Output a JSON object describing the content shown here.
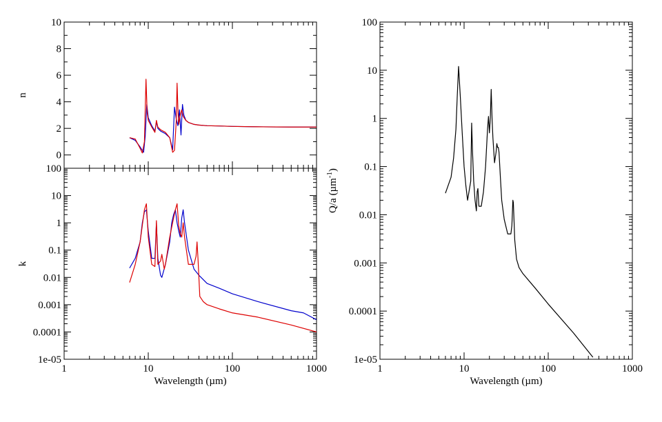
{
  "chart_data": [
    {
      "id": "n",
      "type": "line",
      "ylabel": "n",
      "xscale": "log",
      "yscale": "linear",
      "xlim": [
        1,
        1000
      ],
      "ylim": [
        -1,
        10
      ],
      "y_ticks": [
        "0",
        "2",
        "4",
        "6",
        "8",
        "10"
      ],
      "grid": false,
      "series": [
        {
          "color": "#0000cc",
          "x": [
            6,
            7,
            8,
            8.8,
            9.2,
            9.6,
            10,
            11,
            12,
            12.5,
            13,
            14,
            16,
            18,
            19.5,
            20.5,
            21.5,
            22.5,
            23.5,
            24.5,
            25.5,
            26.5,
            28,
            30,
            35,
            40,
            50,
            70,
            100,
            200,
            500,
            1000
          ],
          "y": [
            1.3,
            1.1,
            0.6,
            0.2,
            1.4,
            3.8,
            2.8,
            2.2,
            1.8,
            2.5,
            2.0,
            1.8,
            1.6,
            1.3,
            0.4,
            3.6,
            2.7,
            2.2,
            3.4,
            1.5,
            3.8,
            3.0,
            2.6,
            2.45,
            2.3,
            2.25,
            2.2,
            2.18,
            2.15,
            2.12,
            2.1,
            2.1
          ]
        },
        {
          "color": "#dd0000",
          "x": [
            6,
            7,
            8,
            8.5,
            9.0,
            9.4,
            9.7,
            10,
            11,
            12,
            12.5,
            13,
            14,
            16,
            18,
            19.5,
            20.5,
            21.5,
            22,
            22.5,
            23,
            24,
            25,
            26,
            28,
            30,
            35,
            40,
            50,
            70,
            100,
            200,
            500,
            1000
          ],
          "y": [
            1.3,
            1.2,
            0.5,
            0.15,
            1.0,
            5.7,
            3.2,
            2.6,
            2.1,
            1.7,
            2.6,
            2.1,
            1.9,
            1.7,
            1.3,
            0.2,
            0.35,
            2.5,
            5.4,
            3.5,
            2.3,
            3.0,
            3.4,
            2.9,
            2.6,
            2.45,
            2.3,
            2.25,
            2.2,
            2.18,
            2.15,
            2.12,
            2.1,
            2.1
          ]
        }
      ]
    },
    {
      "id": "k",
      "type": "line",
      "xlabel": "Wavelength (µm)",
      "ylabel": "k",
      "xscale": "log",
      "yscale": "log",
      "xlim": [
        1,
        1000
      ],
      "ylim": [
        1e-05,
        100
      ],
      "x_ticks": [
        "1",
        "10",
        "100",
        "1000"
      ],
      "y_ticks": [
        "1e-05",
        "0.0001",
        "0.001",
        "0.01",
        "0.1",
        "1",
        "10",
        "100"
      ],
      "grid": false,
      "series": [
        {
          "color": "#0000cc",
          "x": [
            6,
            7,
            8,
            8.5,
            9.0,
            9.5,
            10,
            11,
            12,
            12.5,
            13,
            14,
            14.5,
            16,
            18,
            19,
            20,
            21,
            22,
            23,
            24,
            25,
            26,
            27,
            30,
            35,
            40,
            50,
            70,
            100,
            200,
            500,
            700,
            1000
          ],
          "y": [
            0.022,
            0.05,
            0.2,
            1.0,
            2.5,
            3.0,
            0.5,
            0.05,
            0.05,
            1.0,
            0.05,
            0.012,
            0.01,
            0.03,
            0.2,
            1.0,
            2.0,
            3.0,
            1.0,
            0.5,
            0.3,
            1.5,
            3.0,
            1.0,
            0.1,
            0.02,
            0.012,
            0.006,
            0.004,
            0.0025,
            0.0013,
            0.0006,
            0.0005,
            0.00028
          ]
        },
        {
          "color": "#dd0000",
          "x": [
            6,
            7,
            8,
            8.5,
            9.0,
            9.5,
            10,
            11,
            12,
            12.5,
            13,
            14,
            14.5,
            15.5,
            16,
            18,
            20,
            21,
            22,
            22.5,
            23,
            24,
            25,
            26,
            27,
            30,
            35,
            37,
            38,
            39,
            41,
            45,
            50,
            70,
            100,
            200,
            500,
            1000
          ],
          "y": [
            0.0065,
            0.03,
            0.2,
            0.8,
            3.0,
            5.0,
            0.3,
            0.03,
            0.025,
            1.2,
            0.03,
            0.04,
            0.07,
            0.02,
            0.03,
            0.3,
            1.5,
            3.0,
            5.0,
            2.0,
            0.8,
            0.4,
            0.3,
            1.0,
            0.3,
            0.03,
            0.03,
            0.06,
            0.2,
            0.05,
            0.002,
            0.0013,
            0.001,
            0.0007,
            0.0005,
            0.00035,
            0.00018,
            0.0001
          ]
        }
      ]
    },
    {
      "id": "q",
      "type": "line",
      "xlabel": "Wavelength (µm)",
      "ylabel_main": "Q/a (µm",
      "ylabel_sup": "-1",
      "ylabel_end": ")",
      "xscale": "log",
      "yscale": "log",
      "xlim": [
        1,
        1000
      ],
      "ylim": [
        1e-05,
        100
      ],
      "x_ticks": [
        "1",
        "10",
        "100",
        "1000"
      ],
      "y_ticks": [
        "1e-05",
        "0.0001",
        "0.001",
        "0.01",
        "0.1",
        "1",
        "10",
        "100"
      ],
      "grid": false,
      "series": [
        {
          "color": "#000000",
          "x": [
            6,
            7,
            7.5,
            8,
            8.3,
            8.6,
            9,
            9.5,
            10,
            10.5,
            11,
            12,
            12.3,
            12.6,
            13,
            13.5,
            14,
            14.3,
            14.6,
            15,
            16,
            17,
            18,
            19,
            19.5,
            20,
            20.5,
            21,
            21.5,
            22,
            23,
            24,
            24.5,
            25,
            25.5,
            26,
            27,
            28,
            30,
            33,
            36,
            37,
            38,
            38.5,
            39,
            40,
            42,
            45,
            50,
            70,
            100,
            200,
            340
          ],
          "y": [
            0.028,
            0.06,
            0.15,
            0.6,
            3.0,
            12.0,
            3.0,
            0.5,
            0.1,
            0.04,
            0.02,
            0.05,
            0.8,
            0.2,
            0.05,
            0.02,
            0.012,
            0.03,
            0.035,
            0.015,
            0.015,
            0.03,
            0.1,
            0.6,
            1.1,
            0.5,
            1.0,
            4.0,
            1.0,
            0.4,
            0.12,
            0.2,
            0.3,
            0.25,
            0.25,
            0.2,
            0.06,
            0.02,
            0.008,
            0.004,
            0.004,
            0.006,
            0.02,
            0.018,
            0.01,
            0.003,
            0.0012,
            0.0008,
            0.0006,
            0.0003,
            0.00014,
            3.5e-05,
            1.1e-05
          ]
        }
      ]
    }
  ]
}
